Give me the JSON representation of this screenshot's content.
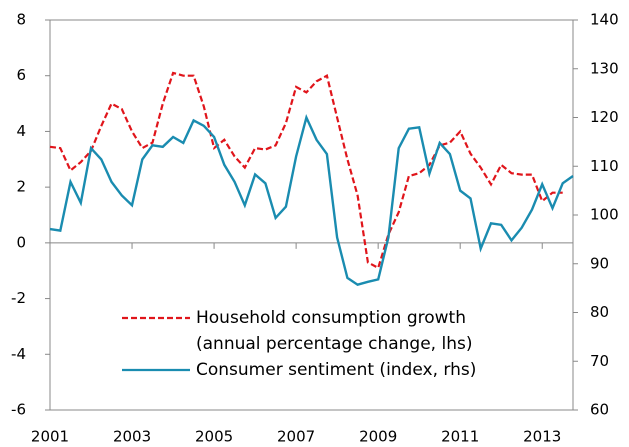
{
  "chart_data": {
    "type": "line",
    "x": [
      2001,
      2001.25,
      2001.5,
      2001.75,
      2002,
      2002.25,
      2002.5,
      2002.75,
      2003,
      2003.25,
      2003.5,
      2003.75,
      2004,
      2004.25,
      2004.5,
      2004.75,
      2005,
      2005.25,
      2005.5,
      2005.75,
      2006,
      2006.25,
      2006.5,
      2006.75,
      2007,
      2007.25,
      2007.5,
      2007.75,
      2008,
      2008.25,
      2008.5,
      2008.75,
      2009,
      2009.25,
      2009.5,
      2009.75,
      2010,
      2010.25,
      2010.5,
      2010.75,
      2011,
      2011.25,
      2011.5,
      2011.75,
      2012,
      2012.25,
      2012.5,
      2012.75,
      2013,
      2013.25,
      2013.5,
      2013.75
    ],
    "series": [
      {
        "name": "Household consumption growth (annual percentage change, lhs)",
        "color": "#e0151b",
        "dashed": true,
        "values": [
          3.45,
          3.4,
          2.6,
          2.9,
          3.3,
          4.2,
          5.0,
          4.8,
          4.0,
          3.4,
          3.6,
          5.0,
          6.1,
          6.0,
          6.0,
          4.9,
          3.4,
          3.7,
          3.1,
          2.7,
          3.4,
          3.35,
          3.5,
          4.3,
          5.6,
          5.4,
          5.8,
          6.0,
          4.5,
          3.0,
          1.7,
          -0.7,
          -0.9,
          0.3,
          1.1,
          2.4,
          2.5,
          2.8,
          3.5,
          3.6,
          4.0,
          3.2,
          2.7,
          2.1,
          2.8,
          2.5,
          2.45,
          2.45,
          1.5,
          1.8,
          1.8,
          null
        ]
      },
      {
        "name": "Consumer sentiment (index, rhs)",
        "color": "#1a8cb0",
        "axis": "y2",
        "values": [
          97.1,
          96.8,
          106.8,
          102.5,
          113.7,
          111.4,
          106.8,
          104,
          102,
          111.4,
          114.3,
          114,
          116,
          114.8,
          119.4,
          118.3,
          116,
          110.3,
          106.8,
          102,
          108.3,
          106.5,
          99.4,
          101.7,
          112,
          120,
          115.4,
          112.5,
          95.4,
          87.1,
          85.7,
          86.3,
          86.8,
          95.4,
          113.7,
          117.7,
          118,
          108.5,
          114.8,
          112.5,
          105,
          103.4,
          93.1,
          98.3,
          98,
          94.8,
          97.4,
          101.1,
          106.3,
          101.4,
          106.5,
          108
        ]
      }
    ],
    "xlim": [
      2001,
      2013.75
    ],
    "xticks": [
      2001,
      2003,
      2005,
      2007,
      2009,
      2011,
      2013
    ],
    "ylim": [
      -6,
      8
    ],
    "yticks": [
      -6,
      -4,
      -2,
      0,
      2,
      4,
      6,
      8
    ],
    "y2lim": [
      60,
      140
    ],
    "y2ticks": [
      60,
      70,
      80,
      90,
      100,
      110,
      120,
      130,
      140
    ]
  }
}
